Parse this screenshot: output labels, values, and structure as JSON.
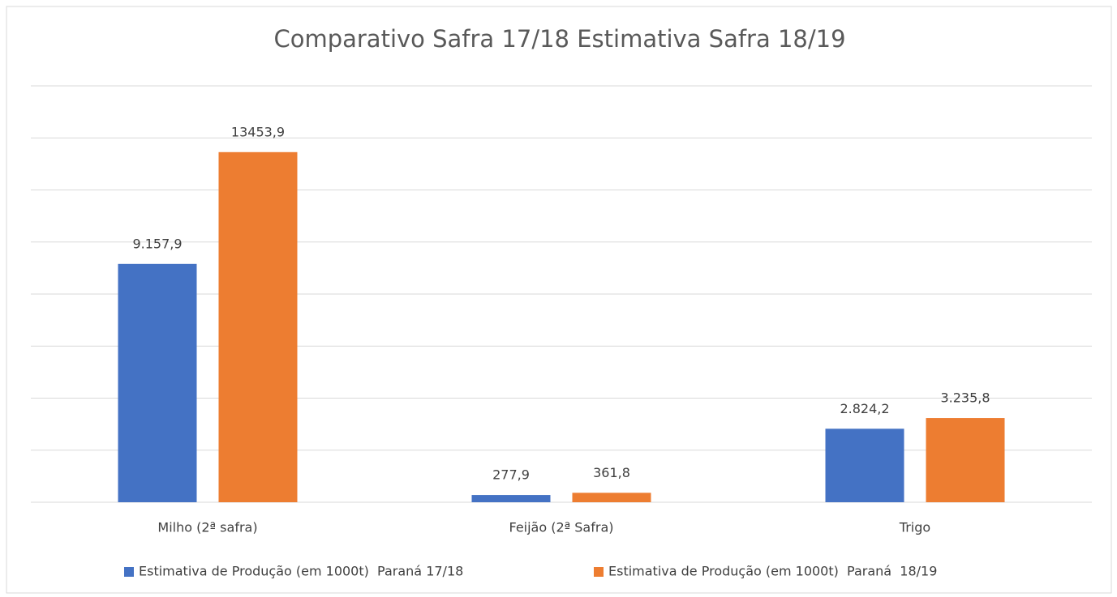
{
  "chart_data": {
    "type": "bar",
    "title": "Comparativo Safra 17/18 Estimativa Safra 18/19",
    "categories": [
      "Milho (2ª safra)",
      "Feijão (2ª Safra)",
      "Trigo"
    ],
    "series": [
      {
        "name": "Estimativa de Produção (em 1000t)  Paraná 17/18",
        "color": "#4472c4",
        "values": [
          9157.9,
          277.9,
          2824.2
        ],
        "value_labels": [
          "9.157,9",
          "277,9",
          "2.824,2"
        ]
      },
      {
        "name": "Estimativa de Produção (em 1000t)  Paraná  18/19",
        "color": "#ed7d31",
        "values": [
          13453.9,
          361.8,
          3235.8
        ],
        "value_labels": [
          "13453,9",
          "361,8",
          "3.235,8"
        ]
      }
    ],
    "ylim": [
      0,
      16000
    ],
    "yticks": [
      0,
      2000,
      4000,
      6000,
      8000,
      10000,
      12000,
      14000,
      16000
    ],
    "grid": true,
    "legend": "bottom"
  }
}
